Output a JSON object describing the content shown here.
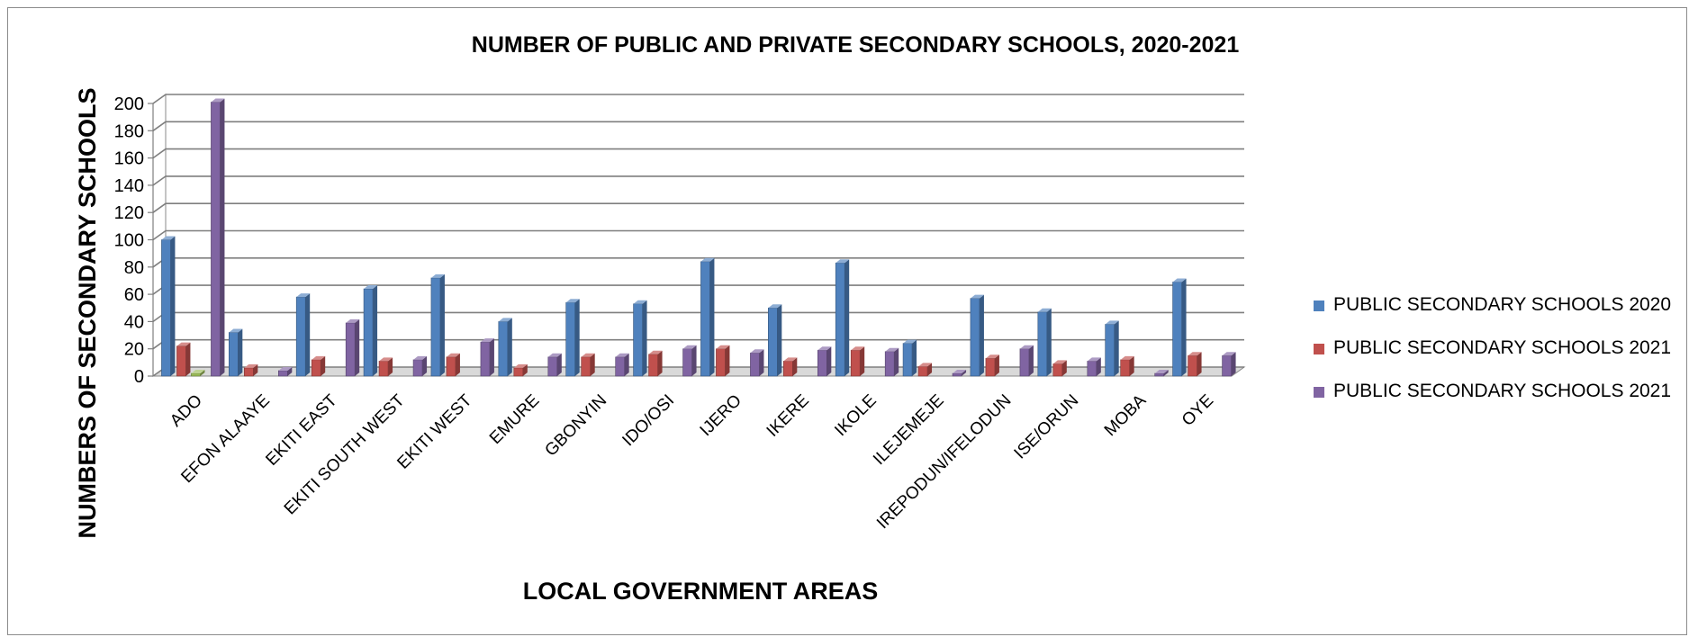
{
  "chart_data": {
    "type": "bar",
    "title": "NUMBER OF PUBLIC AND PRIVATE SECONDARY SCHOOLS, 2020-2021",
    "xlabel": "LOCAL GOVERNMENT AREAS",
    "ylabel": "NUMBERS OF SECONDARY SCHOOLS",
    "ylim": [
      0,
      200
    ],
    "yticks": [
      0,
      20,
      40,
      60,
      80,
      100,
      120,
      140,
      160,
      180,
      200
    ],
    "grid": true,
    "legend_position": "right",
    "categories": [
      "ADO",
      "EFON ALAAYE",
      "EKITI EAST",
      "EKITI SOUTH WEST",
      "EKITI WEST",
      "EMURE",
      "GBONYIN",
      "IDO/OSI",
      "IJERO",
      "IKERE",
      "IKOLE",
      "ILEJEMEJE",
      "IREPODUN/IFELODUN",
      "ISE/ORUN",
      "MOBA",
      "OYE"
    ],
    "series": [
      {
        "name": "PUBLIC SECONDARY SCHOOLS 2020",
        "color": "#4f81bd",
        "values": [
          100,
          32,
          58,
          64,
          72,
          40,
          54,
          53,
          84,
          50,
          83,
          24,
          57,
          47,
          38,
          69
        ]
      },
      {
        "name": "PUBLIC SECONDARY SCHOOLS 2021",
        "color": "#c0504d",
        "values": [
          22,
          6,
          12,
          11,
          14,
          6,
          14,
          16,
          20,
          11,
          19,
          7,
          13,
          9,
          12,
          15
        ]
      },
      {
        "color": "#9bbb59",
        "values": [
          2,
          0,
          0,
          0,
          0,
          0,
          0,
          0,
          0,
          0,
          0,
          0,
          0,
          0,
          0,
          0
        ]
      },
      {
        "name": "PUBLIC SECONDARY SCHOOLS 2021",
        "color": "#8064a2",
        "values": [
          201,
          4,
          39,
          12,
          25,
          14,
          14,
          20,
          17,
          19,
          18,
          2,
          20,
          11,
          2,
          15
        ]
      }
    ]
  }
}
